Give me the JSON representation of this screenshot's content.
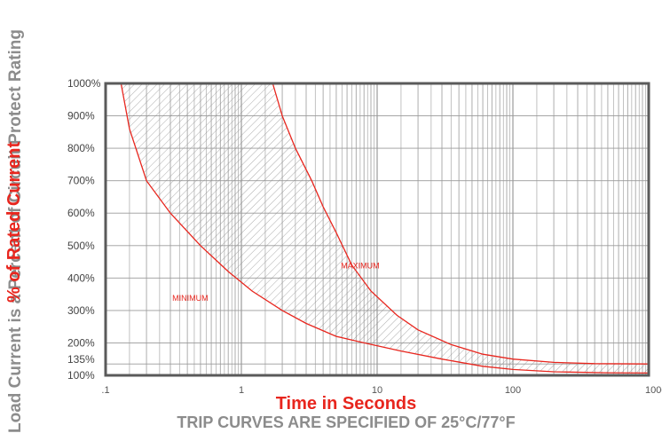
{
  "chart_data": {
    "type": "line",
    "title": "",
    "xlabel": "Time in Seconds",
    "subtitle": "TRIP CURVES ARE SPECIFIED OF 25°C/77°F",
    "ylabel_primary": "% of Rated Current",
    "ylabel_secondary": "Load Current is a Percent of Circuit Protect Rating",
    "x_scale": "log",
    "xlim": [
      0.1,
      1000
    ],
    "ylim": [
      100,
      1000
    ],
    "x_ticks": [
      {
        "value": 0.1,
        "label": ".1"
      },
      {
        "value": 1,
        "label": "1"
      },
      {
        "value": 10,
        "label": "10"
      },
      {
        "value": 100,
        "label": "100"
      },
      {
        "value": 1000,
        "label": "1000"
      }
    ],
    "y_ticks": [
      {
        "value": 100,
        "label": "100%"
      },
      {
        "value": 135,
        "label": "135%"
      },
      {
        "value": 200,
        "label": "200%"
      },
      {
        "value": 300,
        "label": "300%"
      },
      {
        "value": 400,
        "label": "400%"
      },
      {
        "value": 500,
        "label": "500%"
      },
      {
        "value": 600,
        "label": "600%"
      },
      {
        "value": 700,
        "label": "700%"
      },
      {
        "value": 800,
        "label": "800%"
      },
      {
        "value": 900,
        "label": "900%"
      },
      {
        "value": 1000,
        "label": "1000%"
      }
    ],
    "grid": true,
    "band_between_series": "hatched",
    "series": [
      {
        "name": "MINIMUM",
        "color": "#e8261e",
        "points": [
          [
            0.13,
            1000
          ],
          [
            0.15,
            860
          ],
          [
            0.2,
            700
          ],
          [
            0.3,
            600
          ],
          [
            0.5,
            500
          ],
          [
            0.8,
            420
          ],
          [
            1.2,
            360
          ],
          [
            2,
            300
          ],
          [
            3,
            260
          ],
          [
            5,
            220
          ],
          [
            8,
            200
          ],
          [
            15,
            175
          ],
          [
            30,
            150
          ],
          [
            60,
            128
          ],
          [
            100,
            118
          ],
          [
            200,
            111
          ],
          [
            500,
            108
          ],
          [
            1000,
            107
          ]
        ]
      },
      {
        "name": "MAXIMUM",
        "color": "#e8261e",
        "points": [
          [
            1.7,
            1000
          ],
          [
            2.0,
            900
          ],
          [
            2.5,
            800
          ],
          [
            3.3,
            700
          ],
          [
            4.0,
            620
          ],
          [
            5.0,
            540
          ],
          [
            6.5,
            440
          ],
          [
            9,
            360
          ],
          [
            14,
            285
          ],
          [
            20,
            240
          ],
          [
            35,
            195
          ],
          [
            60,
            165
          ],
          [
            100,
            150
          ],
          [
            200,
            140
          ],
          [
            400,
            136
          ],
          [
            1000,
            135
          ]
        ]
      }
    ]
  },
  "colors": {
    "curve": "#e8261e",
    "grid": "#9a9a9a",
    "frame": "#5a5a5a",
    "hatch": "#8a8a8a",
    "label_red": "#e8261e",
    "label_gray": "#8c8c8c"
  }
}
